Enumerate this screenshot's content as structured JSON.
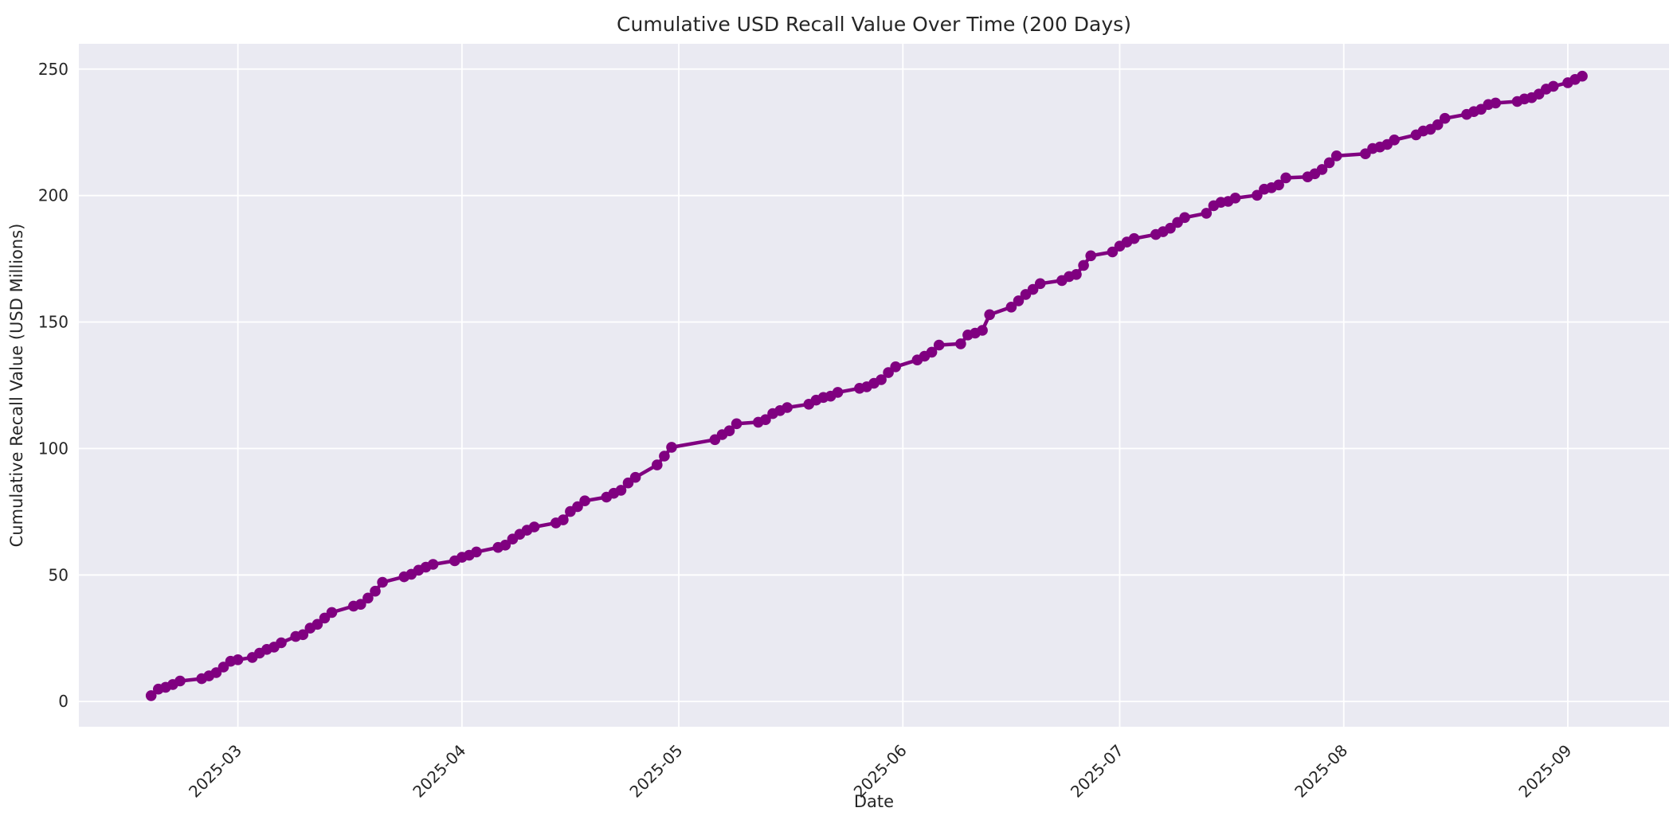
{
  "chart_data": {
    "type": "line",
    "title": "Cumulative USD Recall Value Over Time (200 Days)",
    "xlabel": "Date",
    "ylabel": "Cumulative Recall Value (USD Millions)",
    "legend": null,
    "grid": true,
    "line_color": "#800080",
    "marker": "circle",
    "marker_color": "#800080",
    "plot_bg_color": "#eaeaf2",
    "grid_color": "#ffffff",
    "text_color": "#262626",
    "figure_bg_color": "#ffffff",
    "ylim": [
      -10,
      260
    ],
    "xlim": [
      "2025-02-07",
      "2025-09-15"
    ],
    "y_ticks": [
      0,
      50,
      100,
      150,
      200,
      250
    ],
    "x_ticks": [
      {
        "label": "2025-03",
        "date": "2025-03-01"
      },
      {
        "label": "2025-04",
        "date": "2025-04-01"
      },
      {
        "label": "2025-05",
        "date": "2025-05-01"
      },
      {
        "label": "2025-06",
        "date": "2025-06-01"
      },
      {
        "label": "2025-07",
        "date": "2025-07-01"
      },
      {
        "label": "2025-08",
        "date": "2025-08-01"
      },
      {
        "label": "2025-09",
        "date": "2025-09-01"
      }
    ],
    "series": [
      {
        "name": "Cumulative Recall Value",
        "points": [
          [
            "2025-02-17",
            2.3
          ],
          [
            "2025-02-18",
            4.9
          ],
          [
            "2025-02-19",
            5.6
          ],
          [
            "2025-02-20",
            6.7
          ],
          [
            "2025-02-21",
            8.1
          ],
          [
            "2025-02-24",
            9.0
          ],
          [
            "2025-02-25",
            10.1
          ],
          [
            "2025-02-26",
            11.4
          ],
          [
            "2025-02-27",
            13.6
          ],
          [
            "2025-02-28",
            15.9
          ],
          [
            "2025-03-01",
            16.5
          ],
          [
            "2025-03-03",
            17.4
          ],
          [
            "2025-03-04",
            19.1
          ],
          [
            "2025-03-05",
            20.6
          ],
          [
            "2025-03-06",
            21.5
          ],
          [
            "2025-03-07",
            23.2
          ],
          [
            "2025-03-09",
            25.7
          ],
          [
            "2025-03-10",
            26.4
          ],
          [
            "2025-03-11",
            29.0
          ],
          [
            "2025-03-12",
            30.5
          ],
          [
            "2025-03-13",
            33.0
          ],
          [
            "2025-03-14",
            35.2
          ],
          [
            "2025-03-17",
            37.7
          ],
          [
            "2025-03-18",
            38.4
          ],
          [
            "2025-03-19",
            40.9
          ],
          [
            "2025-03-20",
            43.6
          ],
          [
            "2025-03-21",
            47.1
          ],
          [
            "2025-03-24",
            49.3
          ],
          [
            "2025-03-25",
            50.3
          ],
          [
            "2025-03-26",
            51.9
          ],
          [
            "2025-03-27",
            53.1
          ],
          [
            "2025-03-28",
            54.2
          ],
          [
            "2025-03-31",
            55.6
          ],
          [
            "2025-04-01",
            57.0
          ],
          [
            "2025-04-02",
            57.8
          ],
          [
            "2025-04-03",
            59.1
          ],
          [
            "2025-04-06",
            60.9
          ],
          [
            "2025-04-07",
            61.8
          ],
          [
            "2025-04-08",
            64.2
          ],
          [
            "2025-04-09",
            66.1
          ],
          [
            "2025-04-10",
            67.7
          ],
          [
            "2025-04-11",
            69.0
          ],
          [
            "2025-04-14",
            70.6
          ],
          [
            "2025-04-15",
            71.8
          ],
          [
            "2025-04-16",
            75.1
          ],
          [
            "2025-04-17",
            77.0
          ],
          [
            "2025-04-18",
            79.3
          ],
          [
            "2025-04-21",
            80.8
          ],
          [
            "2025-04-22",
            82.3
          ],
          [
            "2025-04-23",
            83.5
          ],
          [
            "2025-04-24",
            86.4
          ],
          [
            "2025-04-25",
            88.6
          ],
          [
            "2025-04-28",
            93.5
          ],
          [
            "2025-04-29",
            97.0
          ],
          [
            "2025-04-30",
            100.5
          ],
          [
            "2025-05-06",
            103.5
          ],
          [
            "2025-05-07",
            105.5
          ],
          [
            "2025-05-08",
            107.0
          ],
          [
            "2025-05-09",
            109.8
          ],
          [
            "2025-05-12",
            110.4
          ],
          [
            "2025-05-13",
            111.4
          ],
          [
            "2025-05-14",
            113.8
          ],
          [
            "2025-05-15",
            115.0
          ],
          [
            "2025-05-16",
            116.2
          ],
          [
            "2025-05-19",
            117.5
          ],
          [
            "2025-05-20",
            119.1
          ],
          [
            "2025-05-21",
            120.2
          ],
          [
            "2025-05-22",
            120.7
          ],
          [
            "2025-05-23",
            122.2
          ],
          [
            "2025-05-26",
            123.8
          ],
          [
            "2025-05-27",
            124.4
          ],
          [
            "2025-05-28",
            125.8
          ],
          [
            "2025-05-29",
            127.2
          ],
          [
            "2025-05-30",
            130.0
          ],
          [
            "2025-05-31",
            132.3
          ],
          [
            "2025-06-03",
            135.0
          ],
          [
            "2025-06-04",
            136.5
          ],
          [
            "2025-06-05",
            138.1
          ],
          [
            "2025-06-06",
            140.9
          ],
          [
            "2025-06-09",
            141.4
          ],
          [
            "2025-06-10",
            144.9
          ],
          [
            "2025-06-11",
            145.6
          ],
          [
            "2025-06-12",
            146.7
          ],
          [
            "2025-06-13",
            152.9
          ],
          [
            "2025-06-16",
            155.9
          ],
          [
            "2025-06-17",
            158.4
          ],
          [
            "2025-06-18",
            160.9
          ],
          [
            "2025-06-19",
            162.9
          ],
          [
            "2025-06-20",
            165.2
          ],
          [
            "2025-06-23",
            166.4
          ],
          [
            "2025-06-24",
            168.0
          ],
          [
            "2025-06-25",
            168.8
          ],
          [
            "2025-06-26",
            172.4
          ],
          [
            "2025-06-27",
            176.2
          ],
          [
            "2025-06-30",
            177.7
          ],
          [
            "2025-07-01",
            180.0
          ],
          [
            "2025-07-02",
            181.6
          ],
          [
            "2025-07-03",
            183.0
          ],
          [
            "2025-07-06",
            184.6
          ],
          [
            "2025-07-07",
            185.7
          ],
          [
            "2025-07-08",
            187.1
          ],
          [
            "2025-07-09",
            189.4
          ],
          [
            "2025-07-10",
            191.3
          ],
          [
            "2025-07-13",
            193.0
          ],
          [
            "2025-07-14",
            196.0
          ],
          [
            "2025-07-15",
            197.3
          ],
          [
            "2025-07-16",
            197.7
          ],
          [
            "2025-07-17",
            199.0
          ],
          [
            "2025-07-20",
            200.1
          ],
          [
            "2025-07-21",
            202.5
          ],
          [
            "2025-07-22",
            203.1
          ],
          [
            "2025-07-23",
            204.2
          ],
          [
            "2025-07-24",
            207.0
          ],
          [
            "2025-07-27",
            207.4
          ],
          [
            "2025-07-28",
            208.6
          ],
          [
            "2025-07-29",
            210.3
          ],
          [
            "2025-07-30",
            213.0
          ],
          [
            "2025-07-31",
            215.7
          ],
          [
            "2025-08-04",
            216.5
          ],
          [
            "2025-08-05",
            218.6
          ],
          [
            "2025-08-06",
            219.2
          ],
          [
            "2025-08-07",
            220.2
          ],
          [
            "2025-08-08",
            222.0
          ],
          [
            "2025-08-11",
            224.0
          ],
          [
            "2025-08-12",
            225.5
          ],
          [
            "2025-08-13",
            226.2
          ],
          [
            "2025-08-14",
            228.0
          ],
          [
            "2025-08-15",
            230.5
          ],
          [
            "2025-08-18",
            232.1
          ],
          [
            "2025-08-19",
            233.2
          ],
          [
            "2025-08-20",
            234.1
          ],
          [
            "2025-08-21",
            236.0
          ],
          [
            "2025-08-22",
            236.6
          ],
          [
            "2025-08-25",
            237.2
          ],
          [
            "2025-08-26",
            238.2
          ],
          [
            "2025-08-27",
            238.7
          ],
          [
            "2025-08-28",
            240.1
          ],
          [
            "2025-08-29",
            242.1
          ],
          [
            "2025-08-30",
            243.2
          ],
          [
            "2025-09-01",
            244.6
          ],
          [
            "2025-09-02",
            245.9
          ],
          [
            "2025-09-03",
            247.2
          ]
        ]
      }
    ]
  }
}
